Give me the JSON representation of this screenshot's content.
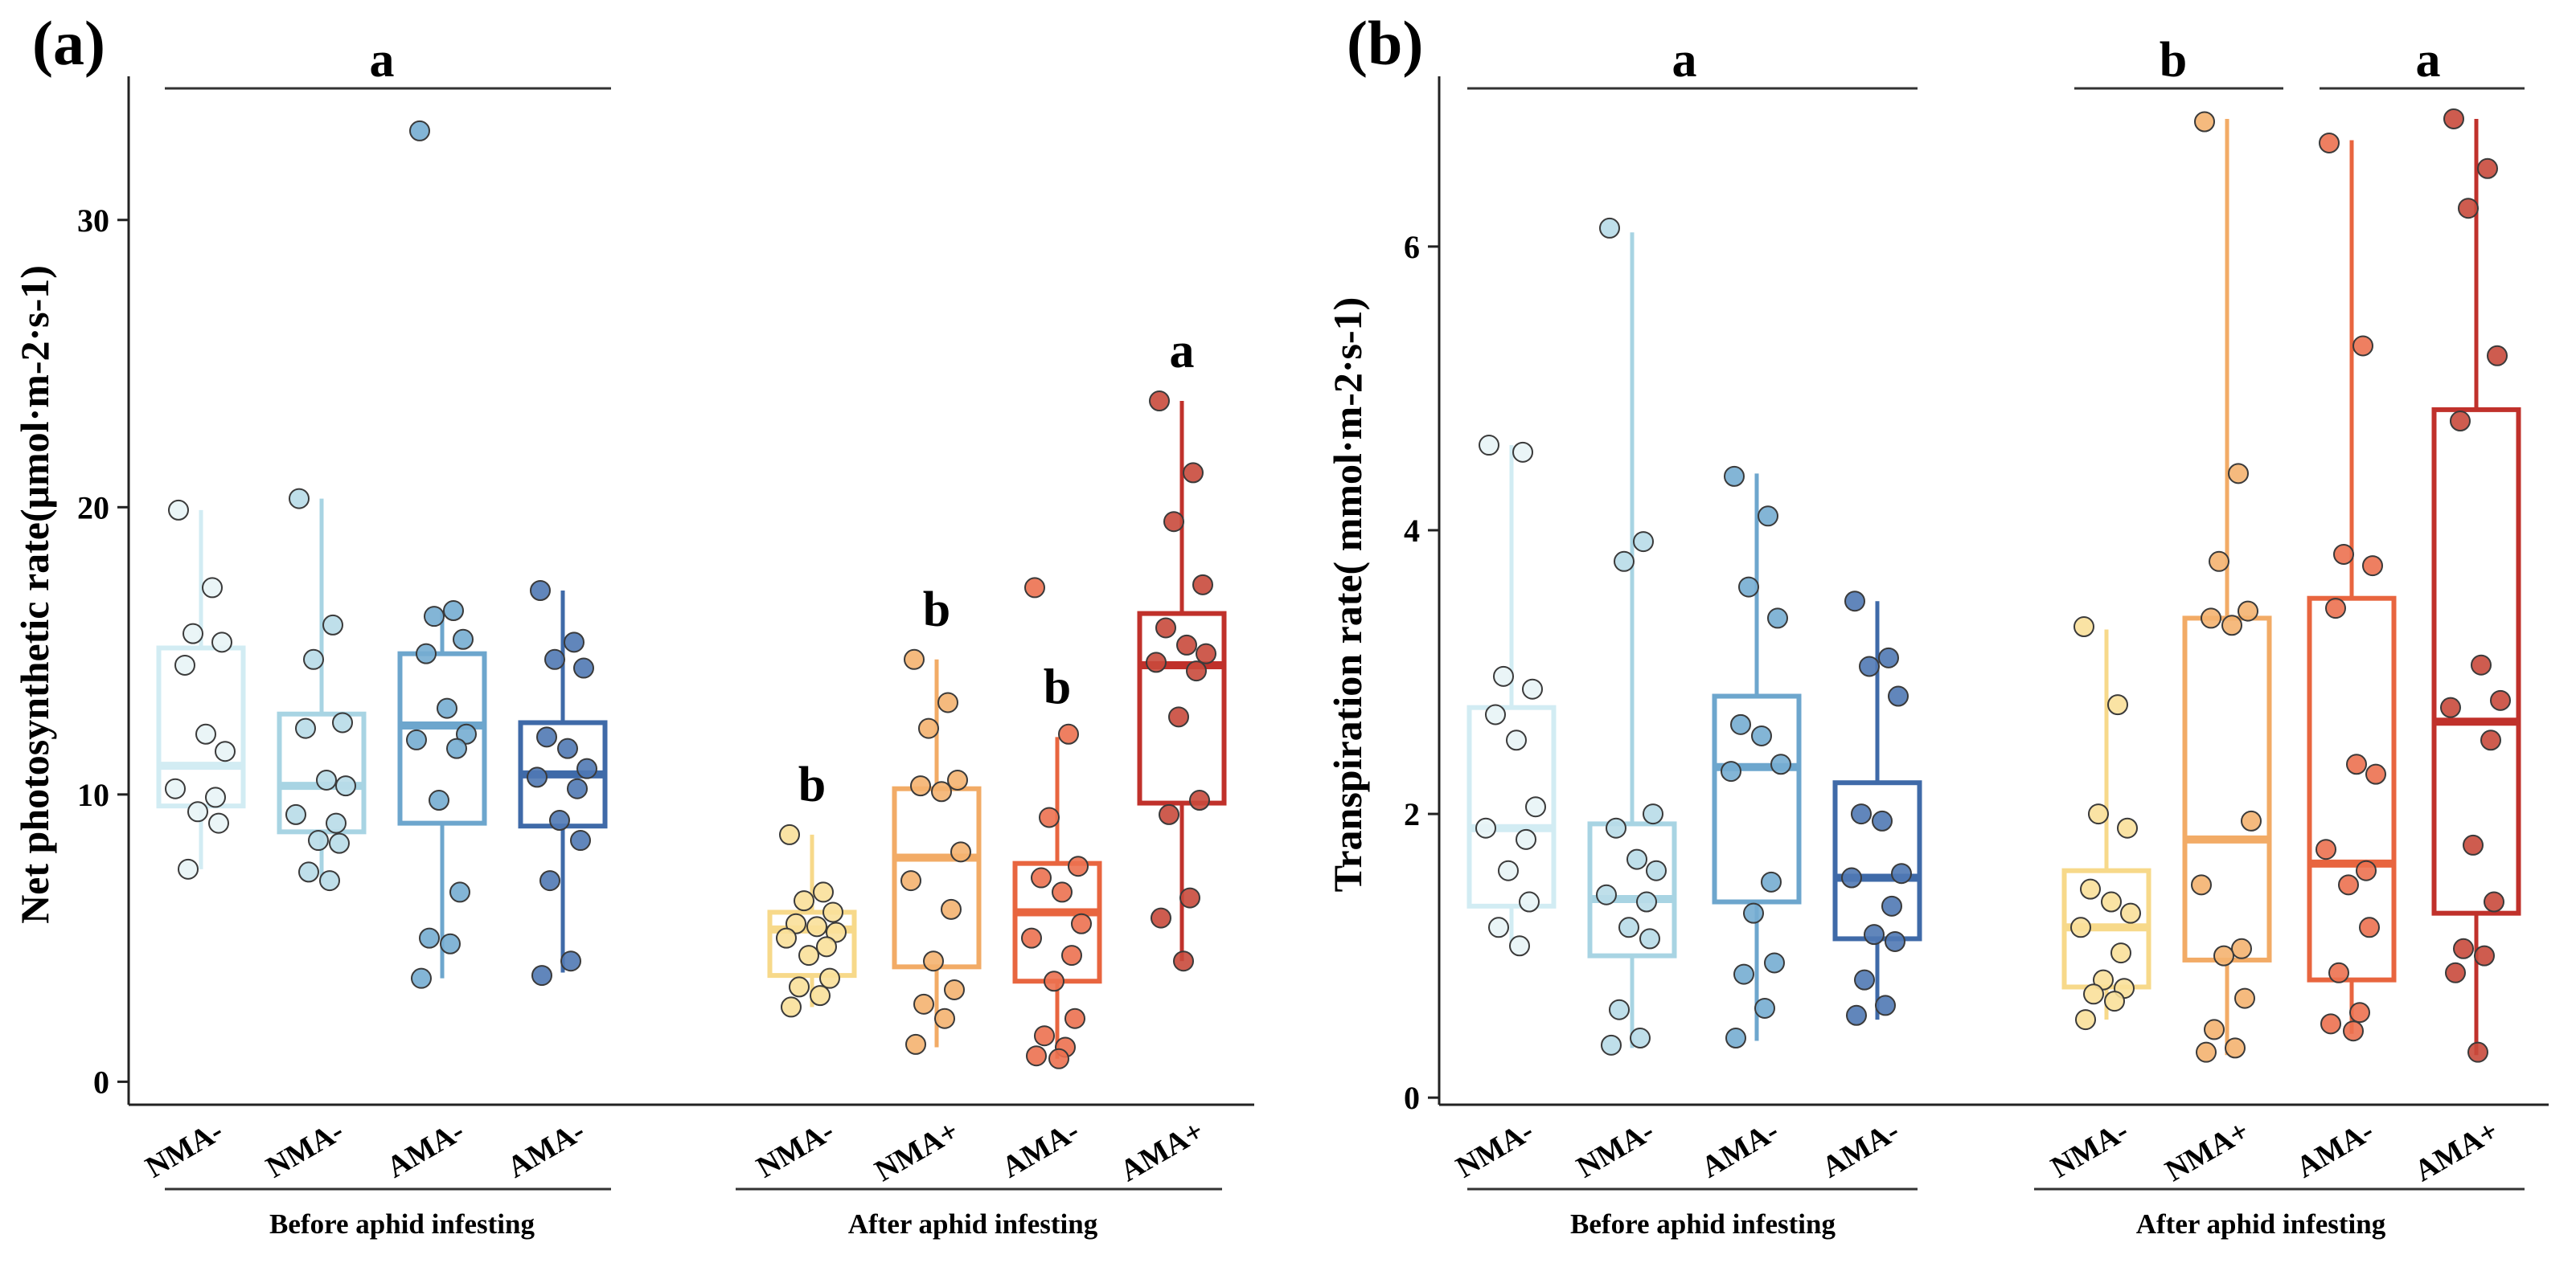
{
  "chart_data": [
    {
      "type": "box",
      "panel_label": "(a)",
      "ylabel": "Net photosynthetic rate(μmol·m-2·s-1)",
      "ylim": [
        -0.8,
        35
      ],
      "yticks": [
        0,
        10,
        20,
        30
      ],
      "groups": [
        {
          "name": "Before aphid infesting",
          "letter": "a"
        },
        {
          "name": "After aphid infesting"
        }
      ],
      "group_letters": [
        "a"
      ],
      "series": [
        {
          "name": "NMA-",
          "group": "Before aphid infesting",
          "color": "#d2ecf3",
          "fill": "#e8f4f6",
          "box": {
            "min": 7.4,
            "q1": 9.6,
            "median": 11.0,
            "q3": 15.1,
            "max": 19.9
          },
          "points": [
            19.9,
            17.2,
            15.6,
            15.3,
            14.5,
            12.1,
            11.5,
            10.2,
            9.9,
            9.4,
            9.0,
            7.4
          ]
        },
        {
          "name": "NMA-",
          "group": "Before aphid infesting",
          "color": "#a8d4e3",
          "fill": "#b8dbe8",
          "box": {
            "min": 7.0,
            "q1": 8.7,
            "median": 10.3,
            "q3": 12.8,
            "max": 20.3
          },
          "points": [
            20.3,
            15.9,
            14.7,
            12.5,
            12.3,
            10.5,
            10.3,
            9.3,
            9.0,
            8.4,
            8.3,
            7.3,
            7.0
          ]
        },
        {
          "name": "AMA-",
          "group": "Before aphid infesting",
          "color": "#6da6cd",
          "fill": "#75add2",
          "box": {
            "min": 3.6,
            "q1": 9.0,
            "median": 12.4,
            "q3": 14.9,
            "max": 16.4
          },
          "points": [
            33.1,
            16.4,
            16.2,
            15.4,
            14.9,
            13.0,
            12.1,
            11.9,
            11.6,
            9.8,
            6.6,
            5.0,
            4.8,
            3.6
          ]
        },
        {
          "name": "AMA-",
          "group": "Before aphid infesting",
          "color": "#3f6aa8",
          "fill": "#5079b4",
          "box": {
            "min": 3.8,
            "q1": 8.9,
            "median": 10.7,
            "q3": 12.5,
            "max": 17.1
          },
          "points": [
            17.1,
            15.3,
            14.7,
            14.4,
            12.0,
            11.6,
            10.9,
            10.6,
            10.2,
            9.1,
            8.4,
            7.0,
            4.2,
            3.7
          ]
        },
        {
          "name": "NMA-",
          "group": "After aphid infesting",
          "color": "#f7d98a",
          "fill": "#f9e09a",
          "letter": "b",
          "box": {
            "min": 2.6,
            "q1": 3.7,
            "median": 5.3,
            "q3": 5.9,
            "max": 8.6
          },
          "points": [
            8.6,
            6.6,
            6.3,
            5.9,
            5.5,
            5.4,
            5.2,
            5.0,
            4.7,
            4.4,
            3.6,
            3.3,
            3.0,
            2.6
          ]
        },
        {
          "name": "NMA+",
          "group": "After aphid infesting",
          "color": "#f2ab66",
          "fill": "#f4b370",
          "letter": "b",
          "box": {
            "min": 1.2,
            "q1": 4.0,
            "median": 7.8,
            "q3": 10.2,
            "max": 14.7
          },
          "points": [
            14.7,
            13.2,
            12.3,
            10.5,
            10.3,
            10.1,
            8.0,
            7.0,
            6.0,
            4.2,
            3.2,
            2.7,
            2.2,
            1.3
          ]
        },
        {
          "name": "AMA-",
          "group": "After aphid infesting",
          "color": "#e8653f",
          "fill": "#ec7150",
          "letter": "b",
          "box": {
            "min": 0.8,
            "q1": 3.5,
            "median": 5.9,
            "q3": 7.6,
            "max": 12.0
          },
          "points": [
            17.2,
            12.1,
            9.2,
            7.5,
            7.1,
            6.6,
            5.5,
            5.0,
            4.4,
            3.5,
            2.2,
            1.6,
            1.2,
            0.9,
            0.8
          ]
        },
        {
          "name": "AMA+",
          "group": "After aphid infesting",
          "color": "#c0312b",
          "fill": "#c94a3c",
          "letter": "a",
          "box": {
            "min": 4.2,
            "q1": 9.7,
            "median": 14.5,
            "q3": 16.3,
            "max": 23.7
          },
          "points": [
            23.7,
            21.2,
            19.5,
            17.3,
            15.8,
            15.2,
            14.9,
            14.6,
            14.3,
            12.7,
            9.8,
            9.3,
            6.4,
            5.7,
            4.2
          ]
        }
      ]
    },
    {
      "type": "box",
      "panel_label": "(b)",
      "ylabel": "Transpiration rate( mmol·m-2·s-1)",
      "ylim": [
        -0.05,
        7.2
      ],
      "yticks": [
        0,
        2,
        4,
        6
      ],
      "groups": [
        {
          "name": "Before aphid infesting",
          "letter": "a"
        },
        {
          "name": "After aphid infesting"
        }
      ],
      "group_letters": [
        "a",
        "b",
        "a"
      ],
      "series": [
        {
          "name": "NMA-",
          "group": "Before aphid infesting",
          "color": "#d2ecf3",
          "fill": "#e8f4f6",
          "box": {
            "min": 1.1,
            "q1": 1.35,
            "median": 1.9,
            "q3": 2.75,
            "max": 4.6
          },
          "points": [
            4.6,
            4.55,
            2.97,
            2.88,
            2.7,
            2.52,
            2.05,
            1.9,
            1.82,
            1.6,
            1.38,
            1.2,
            1.07
          ]
        },
        {
          "name": "NMA-",
          "group": "Before aphid infesting",
          "color": "#a8d4e3",
          "fill": "#b8dbe8",
          "box": {
            "min": 0.35,
            "q1": 1.0,
            "median": 1.4,
            "q3": 1.93,
            "max": 6.1
          },
          "points": [
            6.13,
            3.92,
            3.78,
            2.0,
            1.9,
            1.68,
            1.6,
            1.43,
            1.38,
            1.2,
            1.12,
            0.62,
            0.42,
            0.37
          ]
        },
        {
          "name": "AMA-",
          "group": "Before aphid infesting",
          "color": "#6da6cd",
          "fill": "#75add2",
          "box": {
            "min": 0.4,
            "q1": 1.38,
            "median": 2.33,
            "q3": 2.83,
            "max": 4.4
          },
          "points": [
            4.38,
            4.1,
            3.6,
            3.38,
            2.63,
            2.55,
            2.35,
            2.3,
            1.52,
            1.3,
            0.95,
            0.87,
            0.63,
            0.42
          ]
        },
        {
          "name": "AMA-",
          "group": "Before aphid infesting",
          "color": "#3f6aa8",
          "fill": "#5079b4",
          "box": {
            "min": 0.55,
            "q1": 1.12,
            "median": 1.55,
            "q3": 2.22,
            "max": 3.5
          },
          "points": [
            3.5,
            3.1,
            3.04,
            2.83,
            2.0,
            1.95,
            1.58,
            1.55,
            1.35,
            1.15,
            1.1,
            0.83,
            0.65,
            0.58
          ]
        },
        {
          "name": "NMA-",
          "group": "After aphid infesting",
          "color": "#f7d98a",
          "fill": "#f9e09a",
          "box": {
            "min": 0.55,
            "q1": 0.78,
            "median": 1.2,
            "q3": 1.6,
            "max": 3.3
          },
          "points": [
            3.32,
            2.77,
            2.0,
            1.9,
            1.47,
            1.38,
            1.3,
            1.2,
            1.02,
            0.83,
            0.77,
            0.73,
            0.68,
            0.55
          ]
        },
        {
          "name": "NMA+",
          "group": "After aphid infesting",
          "color": "#f2ab66",
          "fill": "#f4b370",
          "box": {
            "min": 0.3,
            "q1": 0.97,
            "median": 1.82,
            "q3": 3.38,
            "max": 6.9
          },
          "points": [
            6.88,
            4.4,
            3.78,
            3.43,
            3.38,
            3.33,
            1.95,
            1.5,
            1.05,
            1.0,
            0.7,
            0.48,
            0.35,
            0.32
          ]
        },
        {
          "name": "AMA-",
          "group": "After aphid infesting",
          "color": "#e8653f",
          "fill": "#ec7150",
          "box": {
            "min": 0.45,
            "q1": 0.83,
            "median": 1.65,
            "q3": 3.52,
            "max": 6.75
          },
          "points": [
            6.73,
            5.3,
            3.83,
            3.75,
            3.45,
            2.35,
            2.28,
            1.75,
            1.6,
            1.5,
            1.2,
            0.88,
            0.6,
            0.52,
            0.47
          ]
        },
        {
          "name": "AMA+",
          "group": "After aphid infesting",
          "color": "#c0312b",
          "fill": "#c94a3c",
          "box": {
            "min": 0.3,
            "q1": 1.3,
            "median": 2.65,
            "q3": 4.85,
            "max": 6.9
          },
          "points": [
            6.9,
            6.55,
            6.27,
            5.23,
            4.77,
            3.05,
            2.8,
            2.75,
            2.52,
            1.78,
            1.38,
            1.05,
            1.0,
            0.88,
            0.32
          ]
        }
      ]
    }
  ]
}
